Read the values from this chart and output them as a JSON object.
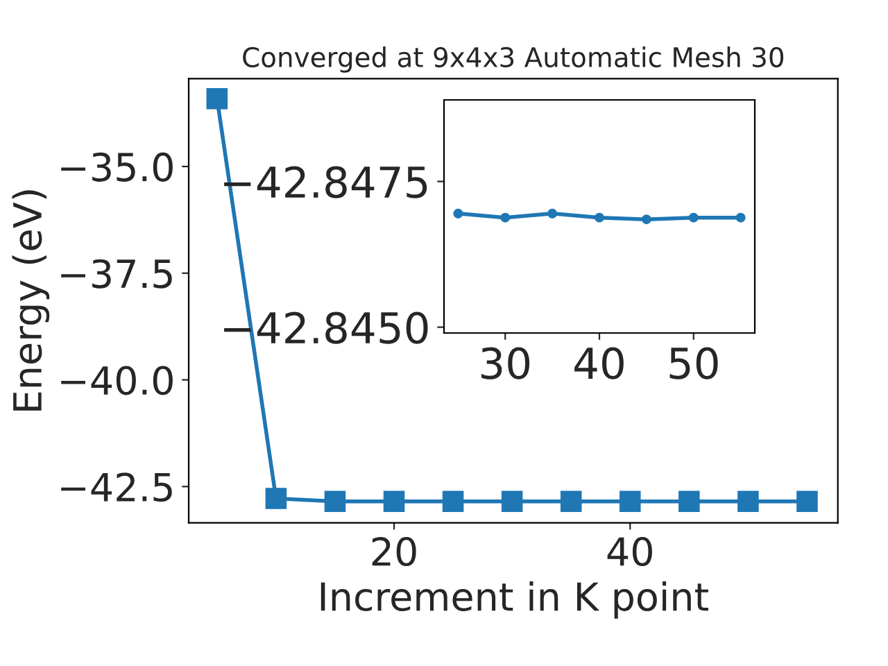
{
  "chart_data": [
    {
      "type": "line",
      "title": "Converged at 9x4x3 Automatic Mesh 30",
      "xlabel": "Increment in K point",
      "ylabel": "Energy (eV)",
      "marker": "square",
      "line_style": "solid",
      "grid": false,
      "legend": false,
      "x": [
        5,
        10,
        15,
        20,
        25,
        30,
        35,
        40,
        45,
        50,
        55
      ],
      "series": [
        {
          "color": "#1f77b4",
          "values": [
            -33.41,
            -42.78,
            -42.85,
            -42.85,
            -42.85,
            -42.85,
            -42.85,
            -42.85,
            -42.85,
            -42.85,
            -42.85
          ]
        }
      ],
      "xlim": [
        2.6,
        57.6
      ],
      "xticks": [
        20,
        40
      ],
      "ylim": [
        -43.35,
        -32.94
      ],
      "yticks": [
        {
          "value": -35.0,
          "label": "−35.0"
        },
        {
          "value": -37.5,
          "label": "−37.5"
        },
        {
          "value": -40.0,
          "label": "−40.0"
        },
        {
          "value": -42.5,
          "label": "−42.5"
        }
      ]
    },
    {
      "type": "line",
      "marker": "circle",
      "line_style": "solid",
      "grid": false,
      "legend": false,
      "x": [
        25,
        30,
        35,
        40,
        45,
        50,
        55
      ],
      "series": [
        {
          "color": "#1f77b4",
          "values": [
            -42.84695,
            -42.84688,
            -42.84695,
            -42.84688,
            -42.84685,
            -42.84688,
            -42.84688
          ]
        }
      ],
      "xlim": [
        23.5,
        56.5
      ],
      "xticks": [
        30,
        40,
        50
      ],
      "ylim": [
        -42.8449,
        -42.8489
      ],
      "yticks": [
        {
          "value": -42.8475,
          "label": "−42.8475"
        },
        {
          "value": -42.845,
          "label": "−42.8450"
        }
      ]
    }
  ]
}
